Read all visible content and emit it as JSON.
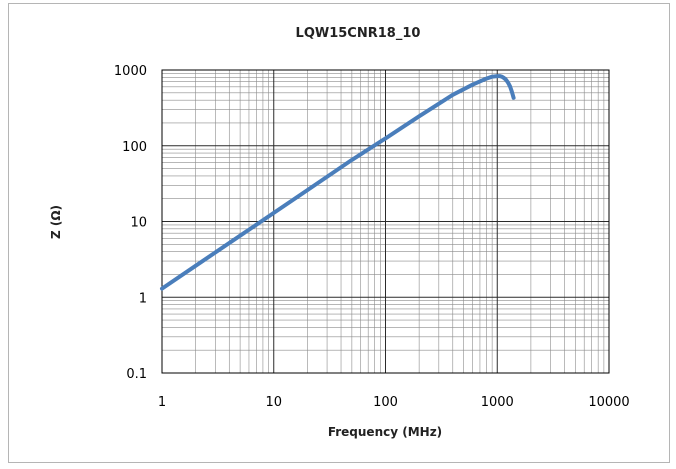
{
  "chart_data": {
    "type": "line",
    "title": "LQW15CNR18_10",
    "xlabel": "Frequency (MHz)",
    "ylabel": "Z (Ω)",
    "xscale": "log",
    "yscale": "log",
    "xlim": [
      1,
      10000
    ],
    "ylim": [
      0.1,
      1000
    ],
    "xticks": [
      "1",
      "10",
      "100",
      "1000",
      "10000"
    ],
    "yticks": [
      "0.1",
      "1",
      "10",
      "100",
      "1000"
    ],
    "grid": true,
    "legend": "none",
    "series": [
      {
        "color": "#4a7ebb",
        "x": [
          1,
          2,
          5,
          10,
          20,
          50,
          100,
          200,
          400,
          600,
          800,
          900,
          1000,
          1050,
          1100,
          1150,
          1200,
          1250,
          1300,
          1350,
          1400
        ],
        "y": [
          1.3,
          2.6,
          6.5,
          13,
          26,
          65,
          125,
          245,
          470,
          640,
          770,
          815,
          830,
          830,
          815,
          785,
          740,
          680,
          610,
          520,
          430
        ]
      }
    ]
  }
}
